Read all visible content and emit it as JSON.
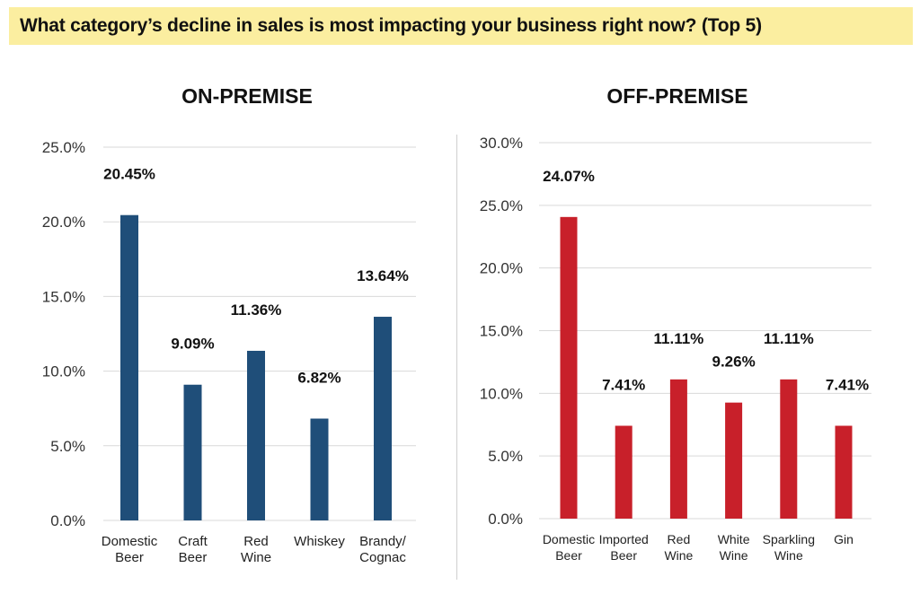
{
  "header": {
    "question": "What category’s decline in sales is most impacting your business right now? (Top 5)"
  },
  "chart_data": [
    {
      "type": "bar",
      "title": "ON-PREMISE",
      "categories": [
        "Domestic\nBeer",
        "Craft\nBeer",
        "Red\nWine",
        "Whiskey",
        "Brandy/\nCognac"
      ],
      "values": [
        20.45,
        9.09,
        11.36,
        6.82,
        13.64
      ],
      "value_labels": [
        "20.45%",
        "9.09%",
        "11.36%",
        "6.82%",
        "13.64%"
      ],
      "yticks": [
        "0.0%",
        "5.0%",
        "10.0%",
        "15.0%",
        "20.0%",
        "25.0%"
      ],
      "ylim": [
        0,
        25
      ],
      "grid": true,
      "bar_color": "#1f4e79"
    },
    {
      "type": "bar",
      "title": "OFF-PREMISE",
      "categories": [
        "Domestic\nBeer",
        "Imported\nBeer",
        "Red\nWine",
        "White\nWine",
        "Sparkling\nWine",
        "Gin"
      ],
      "values": [
        24.07,
        7.41,
        11.11,
        9.26,
        11.11,
        7.41
      ],
      "value_labels": [
        "24.07%",
        "7.41%",
        "11.11%",
        "9.26%",
        "11.11%",
        "7.41%"
      ],
      "yticks": [
        "0.0%",
        "5.0%",
        "10.0%",
        "15.0%",
        "20.0%",
        "25.0%",
        "30.0%"
      ],
      "ylim": [
        0,
        30
      ],
      "grid": true,
      "bar_color": "#c8202a"
    }
  ]
}
